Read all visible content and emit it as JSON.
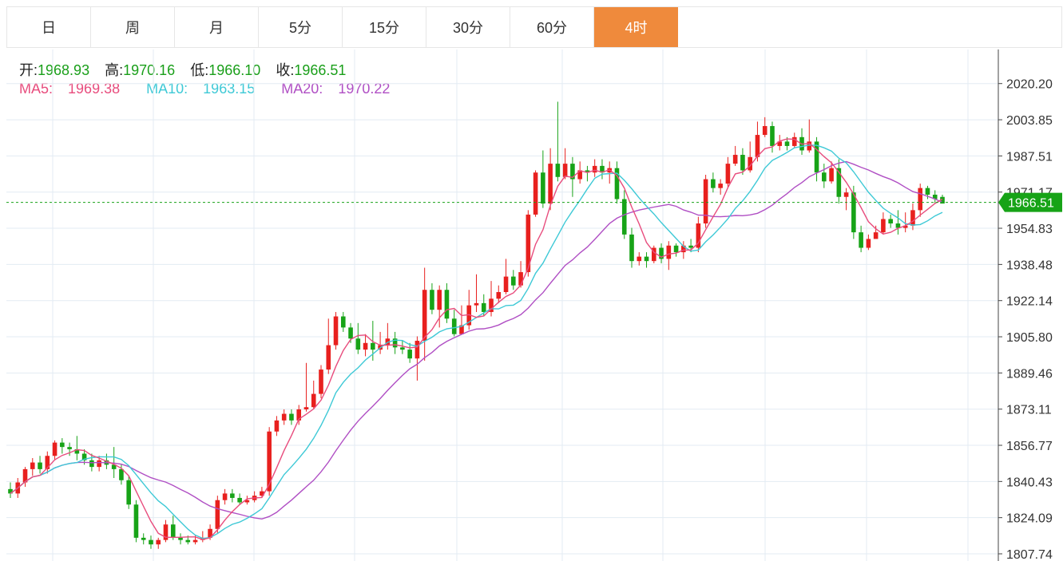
{
  "tabs": [
    {
      "label": "日",
      "active": false
    },
    {
      "label": "周",
      "active": false
    },
    {
      "label": "月",
      "active": false
    },
    {
      "label": "5分",
      "active": false
    },
    {
      "label": "15分",
      "active": false
    },
    {
      "label": "30分",
      "active": false
    },
    {
      "label": "60分",
      "active": false
    },
    {
      "label": "4时",
      "active": true
    }
  ],
  "ohlc": {
    "open_label": "开:",
    "open": "1968.93",
    "high_label": "高:",
    "high": "1970.16",
    "low_label": "低:",
    "low": "1966.10",
    "close_label": "收:",
    "close": "1966.51"
  },
  "ma": {
    "ma5_label": "MA5:",
    "ma5": "1969.38",
    "ma10_label": "MA10:",
    "ma10": "1963.15",
    "ma20_label": "MA20:",
    "ma20": "1970.22"
  },
  "colors": {
    "up": "#e8201e",
    "down": "#17a317",
    "ma5": "#e84c7d",
    "ma10": "#3ec9d6",
    "ma20": "#b04fc4",
    "grid": "#e3ebf3",
    "last_price_bg": "#17a317",
    "active_tab": "#ef8a3c"
  },
  "chart_data": {
    "type": "candlestick",
    "y_ticks": [
      "2020.20",
      "2003.85",
      "1987.51",
      "1971.17",
      "1954.83",
      "1938.48",
      "1922.14",
      "1905.80",
      "1889.46",
      "1873.11",
      "1856.77",
      "1840.43",
      "1824.09",
      "1807.74"
    ],
    "ylim": [
      1804.5,
      2035.6
    ],
    "last_price": "1966.51",
    "candles": [
      [
        1837,
        1835,
        1840,
        1833
      ],
      [
        1835,
        1840,
        1842,
        1833
      ],
      [
        1840,
        1846,
        1847,
        1838
      ],
      [
        1846,
        1849,
        1851,
        1843
      ],
      [
        1849,
        1846,
        1852,
        1844
      ],
      [
        1846,
        1852,
        1854,
        1844
      ],
      [
        1852,
        1858,
        1859,
        1850
      ],
      [
        1858,
        1856,
        1860,
        1853
      ],
      [
        1856,
        1855,
        1858,
        1852
      ],
      [
        1855,
        1853,
        1861,
        1850
      ],
      [
        1853,
        1850,
        1855,
        1848
      ],
      [
        1850,
        1847,
        1853,
        1845
      ],
      [
        1847,
        1850,
        1852,
        1845
      ],
      [
        1850,
        1848,
        1853,
        1846
      ],
      [
        1848,
        1846,
        1856,
        1842
      ],
      [
        1846,
        1841,
        1848,
        1839
      ],
      [
        1841,
        1830,
        1843,
        1828
      ],
      [
        1830,
        1815,
        1832,
        1813
      ],
      [
        1815,
        1814,
        1817,
        1812
      ],
      [
        1814,
        1812,
        1816,
        1810
      ],
      [
        1812,
        1814,
        1815,
        1810
      ],
      [
        1814,
        1821,
        1823,
        1813
      ],
      [
        1821,
        1815,
        1825,
        1814
      ],
      [
        1815,
        1814,
        1817,
        1812
      ],
      [
        1814,
        1813,
        1816,
        1812
      ],
      [
        1813,
        1814,
        1816,
        1812
      ],
      [
        1814,
        1815,
        1818,
        1813
      ],
      [
        1815,
        1819,
        1821,
        1814
      ],
      [
        1819,
        1832,
        1834,
        1817
      ],
      [
        1832,
        1835,
        1837,
        1830
      ],
      [
        1835,
        1833,
        1837,
        1831
      ],
      [
        1833,
        1831,
        1835,
        1830
      ],
      [
        1831,
        1832,
        1834,
        1830
      ],
      [
        1832,
        1834,
        1836,
        1831
      ],
      [
        1834,
        1836,
        1838,
        1833
      ],
      [
        1836,
        1863,
        1865,
        1834
      ],
      [
        1863,
        1868,
        1870,
        1861
      ],
      [
        1868,
        1871,
        1873,
        1866
      ],
      [
        1871,
        1868,
        1873,
        1866
      ],
      [
        1868,
        1873,
        1875,
        1866
      ],
      [
        1873,
        1874,
        1894,
        1872
      ],
      [
        1874,
        1880,
        1886,
        1873
      ],
      [
        1880,
        1891,
        1893,
        1878
      ],
      [
        1891,
        1902,
        1914,
        1889
      ],
      [
        1902,
        1915,
        1917,
        1900
      ],
      [
        1915,
        1910,
        1917,
        1908
      ],
      [
        1910,
        1905,
        1912,
        1903
      ],
      [
        1905,
        1900,
        1912,
        1898
      ],
      [
        1900,
        1903,
        1907,
        1897
      ],
      [
        1903,
        1900,
        1913,
        1895
      ],
      [
        1900,
        1902,
        1908,
        1898
      ],
      [
        1902,
        1905,
        1912,
        1900
      ],
      [
        1905,
        1901,
        1908,
        1898
      ],
      [
        1901,
        1900,
        1904,
        1898
      ],
      [
        1900,
        1896,
        1903,
        1894
      ],
      [
        1896,
        1904,
        1906,
        1886
      ],
      [
        1904,
        1927,
        1937,
        1895
      ],
      [
        1927,
        1918,
        1930,
        1916
      ],
      [
        1918,
        1927,
        1929,
        1910
      ],
      [
        1927,
        1914,
        1930,
        1912
      ],
      [
        1914,
        1907,
        1918,
        1906
      ],
      [
        1907,
        1911,
        1920,
        1910
      ],
      [
        1911,
        1920,
        1927,
        1909
      ],
      [
        1920,
        1921,
        1934,
        1917
      ],
      [
        1921,
        1917,
        1925,
        1915
      ],
      [
        1917,
        1923,
        1931,
        1915
      ],
      [
        1923,
        1926,
        1929,
        1921
      ],
      [
        1926,
        1933,
        1941,
        1925
      ],
      [
        1933,
        1929,
        1936,
        1927
      ],
      [
        1929,
        1935,
        1940,
        1928
      ],
      [
        1935,
        1961,
        1963,
        1933
      ],
      [
        1961,
        1980,
        1981,
        1960
      ],
      [
        1980,
        1966,
        1990,
        1964
      ],
      [
        1966,
        1984,
        1991,
        1963
      ],
      [
        1984,
        1978,
        2012,
        1976
      ],
      [
        1978,
        1984,
        1991,
        1977
      ],
      [
        1984,
        1977,
        1987,
        1969
      ],
      [
        1977,
        1981,
        1985,
        1975
      ],
      [
        1981,
        1980,
        1983,
        1976
      ],
      [
        1980,
        1983,
        1986,
        1978
      ],
      [
        1983,
        1980,
        1986,
        1977
      ],
      [
        1980,
        1982,
        1985,
        1975
      ],
      [
        1982,
        1968,
        1985,
        1966
      ],
      [
        1968,
        1952,
        1972,
        1950
      ],
      [
        1952,
        1940,
        1955,
        1937
      ],
      [
        1940,
        1942,
        1944,
        1938
      ],
      [
        1942,
        1940,
        1944,
        1937
      ],
      [
        1940,
        1946,
        1947,
        1939
      ],
      [
        1946,
        1941,
        1948,
        1939
      ],
      [
        1941,
        1947,
        1949,
        1936
      ],
      [
        1947,
        1944,
        1948,
        1942
      ],
      [
        1944,
        1947,
        1949,
        1941
      ],
      [
        1947,
        1946,
        1950,
        1944
      ],
      [
        1946,
        1957,
        1960,
        1944
      ],
      [
        1957,
        1977,
        1979,
        1955
      ],
      [
        1977,
        1973,
        1980,
        1971
      ],
      [
        1973,
        1975,
        1977,
        1970
      ],
      [
        1975,
        1984,
        1987,
        1973
      ],
      [
        1984,
        1988,
        1992,
        1983
      ],
      [
        1988,
        1981,
        1991,
        1979
      ],
      [
        1981,
        1987,
        1994,
        1980
      ],
      [
        1987,
        1997,
        2003,
        1985
      ],
      [
        1997,
        2001,
        2005,
        1996
      ],
      [
        2001,
        1992,
        2003,
        1989
      ],
      [
        1992,
        1994,
        1997,
        1990
      ],
      [
        1994,
        1992,
        1996,
        1990
      ],
      [
        1992,
        1996,
        1998,
        1991
      ],
      [
        1996,
        1990,
        2000,
        1988
      ],
      [
        1990,
        1994,
        2004,
        1989
      ],
      [
        1994,
        1980,
        1996,
        1976
      ],
      [
        1980,
        1976,
        1984,
        1973
      ],
      [
        1976,
        1982,
        1985,
        1975
      ],
      [
        1982,
        1969,
        1986,
        1966
      ],
      [
        1969,
        1971,
        1973,
        1963
      ],
      [
        1971,
        1953,
        1974,
        1950
      ],
      [
        1953,
        1946,
        1956,
        1944
      ],
      [
        1946,
        1950,
        1952,
        1945
      ],
      [
        1950,
        1953,
        1956,
        1951
      ],
      [
        1953,
        1959,
        1962,
        1952
      ],
      [
        1959,
        1957,
        1961,
        1955
      ],
      [
        1957,
        1955,
        1963,
        1952
      ],
      [
        1955,
        1956,
        1962,
        1953
      ],
      [
        1956,
        1963,
        1966,
        1954
      ],
      [
        1963,
        1973,
        1975,
        1960
      ],
      [
        1973,
        1970,
        1974,
        1968
      ],
      [
        1970,
        1968,
        1972,
        1966
      ],
      [
        1969,
        1966,
        1970,
        1966
      ]
    ]
  }
}
